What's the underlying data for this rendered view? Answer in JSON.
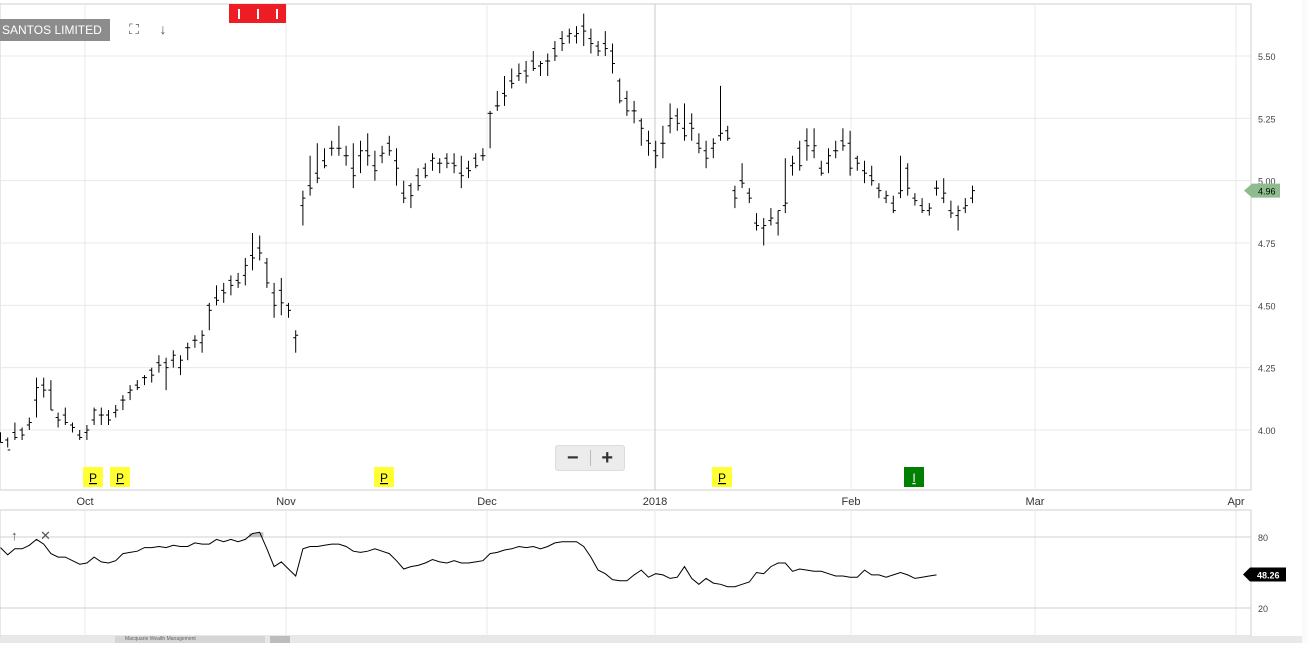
{
  "header": {
    "ticker": "SANTOS LIMITED"
  },
  "icons": {
    "fullscreen": "fullscreen-icon",
    "download": "download-arrow-icon",
    "scroll_up": "arrow-up-icon",
    "close": "close-icon"
  },
  "zoom": {
    "minus": "−",
    "plus": "+"
  },
  "colors": {
    "bar": "#000000",
    "grid": "#e8e8e8",
    "badge": "#8c8c8c",
    "price_tag": "#8fbc8f",
    "marker_yellow": "#ffff33",
    "marker_green": "#008000",
    "flag_red": "#ee1c24",
    "oscillator_tag": "#000000"
  },
  "bottom_tab_label": "Macquarie Wealth Management",
  "chart_data": [
    {
      "type": "bar",
      "title": "SANTOS LIMITED",
      "ylim": [
        3.79,
        5.7
      ],
      "yticks": [
        "4.00",
        "4.25",
        "4.50",
        "4.75",
        "5.00",
        "5.25",
        "5.50"
      ],
      "xticks": [
        "Oct",
        "Nov",
        "Dec",
        "2018",
        "Feb",
        "Mar",
        "Apr"
      ],
      "last_price": "4.96",
      "markers": [
        "P",
        "P",
        "P",
        "P",
        "I"
      ],
      "ohlc": [
        [
          3.99,
          3.95,
          3.99,
          3.95
        ],
        [
          3.96,
          3.93,
          3.97,
          3.92
        ],
        [
          3.99,
          3.96,
          4.03,
          3.97
        ],
        [
          4.0,
          3.96,
          4.01,
          3.98
        ],
        [
          4.02,
          4.0,
          4.05,
          4.03
        ],
        [
          4.12,
          4.05,
          4.21,
          4.17
        ],
        [
          4.18,
          4.13,
          4.21,
          4.16
        ],
        [
          4.16,
          4.08,
          4.2,
          4.08
        ],
        [
          4.05,
          4.01,
          4.07,
          4.04
        ],
        [
          4.06,
          4.02,
          4.09,
          4.03
        ],
        [
          4.02,
          3.99,
          4.03,
          4.01
        ],
        [
          3.98,
          3.96,
          4.0,
          3.97
        ],
        [
          3.99,
          3.96,
          4.02,
          4.0
        ],
        [
          4.04,
          4.02,
          4.09,
          4.08
        ],
        [
          4.06,
          4.02,
          4.09,
          4.06
        ],
        [
          4.06,
          4.02,
          4.08,
          4.04
        ],
        [
          4.07,
          4.05,
          4.1,
          4.08
        ],
        [
          4.12,
          4.08,
          4.14,
          4.12
        ],
        [
          4.15,
          4.12,
          4.18,
          4.16
        ],
        [
          4.18,
          4.16,
          4.2,
          4.17
        ],
        [
          4.21,
          4.18,
          4.22,
          4.21
        ],
        [
          4.24,
          4.19,
          4.25,
          4.22
        ],
        [
          4.27,
          4.23,
          4.3,
          4.26
        ],
        [
          4.27,
          4.16,
          4.29,
          4.25
        ],
        [
          4.28,
          4.25,
          4.32,
          4.3
        ],
        [
          4.25,
          4.22,
          4.3,
          4.28
        ],
        [
          4.33,
          4.28,
          4.35,
          4.33
        ],
        [
          4.36,
          4.33,
          4.38,
          4.36
        ],
        [
          4.35,
          4.31,
          4.4,
          4.38
        ],
        [
          4.5,
          4.4,
          4.51,
          4.48
        ],
        [
          4.53,
          4.5,
          4.58,
          4.52
        ],
        [
          4.56,
          4.51,
          4.59,
          4.55
        ],
        [
          4.6,
          4.54,
          4.62,
          4.58
        ],
        [
          4.6,
          4.57,
          4.63,
          4.59
        ],
        [
          4.62,
          4.58,
          4.69,
          4.66
        ],
        [
          4.7,
          4.64,
          4.79,
          4.69
        ],
        [
          4.73,
          4.68,
          4.78,
          4.71
        ],
        [
          4.67,
          4.57,
          4.69,
          4.59
        ],
        [
          4.55,
          4.45,
          4.59,
          4.5
        ],
        [
          4.56,
          4.46,
          4.61,
          4.51
        ],
        [
          4.5,
          4.45,
          4.51,
          4.48
        ],
        [
          4.37,
          4.31,
          4.4,
          4.38
        ],
        [
          4.9,
          4.82,
          4.96,
          4.93
        ],
        [
          4.98,
          4.94,
          5.1,
          4.97
        ],
        [
          5.03,
          4.99,
          5.15,
          5.01
        ],
        [
          5.08,
          5.05,
          5.13,
          5.06
        ],
        [
          5.13,
          5.1,
          5.16,
          5.13
        ],
        [
          5.13,
          5.1,
          5.22,
          5.13
        ],
        [
          5.1,
          5.06,
          5.14,
          5.1
        ],
        [
          5.05,
          4.97,
          5.15,
          5.02
        ],
        [
          5.1,
          5.03,
          5.16,
          5.12
        ],
        [
          5.12,
          5.06,
          5.19,
          5.1
        ],
        [
          5.06,
          5.0,
          5.12,
          5.04
        ],
        [
          5.1,
          5.07,
          5.14,
          5.11
        ],
        [
          5.15,
          5.1,
          5.18,
          5.12
        ],
        [
          5.08,
          4.98,
          5.13,
          5.05
        ],
        [
          4.95,
          4.91,
          5.0,
          4.93
        ],
        [
          4.98,
          4.89,
          4.99,
          4.94
        ],
        [
          5.02,
          4.96,
          5.05,
          4.98
        ],
        [
          5.05,
          5.01,
          5.07,
          5.02
        ],
        [
          5.08,
          5.04,
          5.11,
          5.09
        ],
        [
          5.07,
          5.03,
          5.09,
          5.07
        ],
        [
          5.09,
          5.05,
          5.11,
          5.07
        ],
        [
          5.07,
          5.03,
          5.11,
          5.06
        ],
        [
          5.03,
          4.97,
          5.1,
          5.02
        ],
        [
          5.05,
          5.01,
          5.08,
          5.04
        ],
        [
          5.09,
          5.05,
          5.11,
          5.06
        ],
        [
          5.1,
          5.08,
          5.13,
          5.1
        ],
        [
          5.27,
          5.13,
          5.28,
          5.27
        ],
        [
          5.3,
          5.28,
          5.36,
          5.3
        ],
        [
          5.35,
          5.3,
          5.42,
          5.34
        ],
        [
          5.4,
          5.37,
          5.45,
          5.39
        ],
        [
          5.42,
          5.4,
          5.47,
          5.43
        ],
        [
          5.44,
          5.39,
          5.48,
          5.42
        ],
        [
          5.48,
          5.44,
          5.52,
          5.45
        ],
        [
          5.46,
          5.42,
          5.48,
          5.47
        ],
        [
          5.48,
          5.42,
          5.51,
          5.48
        ],
        [
          5.53,
          5.48,
          5.56,
          5.5
        ],
        [
          5.57,
          5.52,
          5.6,
          5.55
        ],
        [
          5.58,
          5.55,
          5.61,
          5.59
        ],
        [
          5.58,
          5.55,
          5.62,
          5.59
        ],
        [
          5.62,
          5.54,
          5.67,
          5.6
        ],
        [
          5.57,
          5.51,
          5.61,
          5.55
        ],
        [
          5.54,
          5.5,
          5.56,
          5.52
        ],
        [
          5.55,
          5.5,
          5.6,
          5.53
        ],
        [
          5.52,
          5.43,
          5.55,
          5.47
        ],
        [
          5.4,
          5.31,
          5.41,
          5.32
        ],
        [
          5.33,
          5.26,
          5.36,
          5.28
        ],
        [
          5.28,
          5.23,
          5.32,
          5.28
        ],
        [
          5.24,
          5.14,
          5.25,
          5.21
        ],
        [
          5.16,
          5.1,
          5.2,
          5.15
        ],
        [
          5.12,
          5.05,
          5.16,
          5.1
        ],
        [
          5.15,
          5.09,
          5.22,
          5.15
        ],
        [
          5.22,
          5.19,
          5.31,
          5.25
        ],
        [
          5.26,
          5.2,
          5.29,
          5.23
        ],
        [
          5.21,
          5.16,
          5.31,
          5.18
        ],
        [
          5.23,
          5.16,
          5.27,
          5.21
        ],
        [
          5.15,
          5.11,
          5.19,
          5.13
        ],
        [
          5.12,
          5.05,
          5.16,
          5.09
        ],
        [
          5.13,
          5.09,
          5.17,
          5.15
        ],
        [
          5.18,
          5.16,
          5.38,
          5.19
        ],
        [
          5.2,
          5.16,
          5.22,
          5.17
        ],
        [
          4.96,
          4.89,
          4.98,
          4.93
        ],
        [
          5.0,
          4.97,
          5.07,
          4.99
        ],
        [
          4.95,
          4.91,
          4.97,
          4.93
        ],
        [
          4.83,
          4.8,
          4.87,
          4.82
        ],
        [
          4.81,
          4.74,
          4.85,
          4.82
        ],
        [
          4.84,
          4.82,
          4.89,
          4.85
        ],
        [
          4.83,
          4.78,
          4.88,
          4.88
        ],
        [
          4.9,
          4.87,
          5.09,
          4.91
        ],
        [
          5.06,
          5.02,
          5.1,
          5.07
        ],
        [
          5.13,
          5.04,
          5.16,
          5.06
        ],
        [
          5.16,
          5.08,
          5.21,
          5.14
        ],
        [
          5.12,
          5.09,
          5.21,
          5.14
        ],
        [
          5.05,
          5.02,
          5.08,
          5.03
        ],
        [
          5.07,
          5.03,
          5.13,
          5.1
        ],
        [
          5.12,
          5.09,
          5.16,
          5.12
        ],
        [
          5.16,
          5.12,
          5.21,
          5.14
        ],
        [
          5.15,
          5.02,
          5.2,
          5.05
        ],
        [
          5.09,
          5.04,
          5.1,
          5.07
        ],
        [
          5.04,
          4.99,
          5.08,
          5.03
        ],
        [
          5.02,
          4.98,
          5.06,
          5.0
        ],
        [
          4.97,
          4.93,
          4.99,
          4.96
        ],
        [
          4.93,
          4.91,
          4.96,
          4.94
        ],
        [
          4.91,
          4.87,
          4.94,
          4.88
        ],
        [
          4.95,
          4.93,
          5.1,
          4.96
        ],
        [
          5.05,
          4.94,
          5.07,
          4.97
        ],
        [
          4.93,
          4.9,
          4.95,
          4.92
        ],
        [
          4.9,
          4.87,
          4.93,
          4.88
        ],
        [
          4.88,
          4.86,
          4.91,
          4.89
        ],
        [
          4.97,
          4.94,
          5.0,
          4.97
        ],
        [
          4.93,
          4.91,
          5.01,
          4.95
        ],
        [
          4.88,
          4.85,
          4.92,
          4.87
        ],
        [
          4.86,
          4.8,
          4.9,
          4.88
        ],
        [
          4.89,
          4.87,
          4.93,
          4.9
        ],
        [
          4.93,
          4.91,
          4.98,
          4.96
        ]
      ]
    },
    {
      "type": "line",
      "title": "",
      "ylim": [
        12,
        92
      ],
      "yticks": [
        "80",
        "20"
      ],
      "last_value": "48.26",
      "values": [
        71,
        65,
        70,
        70,
        73,
        78,
        74,
        66,
        63,
        63,
        60,
        57,
        58,
        63,
        59,
        58,
        60,
        66,
        67,
        68,
        71,
        71,
        72,
        71,
        73,
        72,
        72,
        75,
        74,
        74,
        78,
        76,
        78,
        76,
        78,
        83,
        84,
        70,
        55,
        59,
        53,
        47,
        70,
        72,
        72,
        73,
        74,
        74,
        72,
        68,
        67,
        68,
        70,
        68,
        66,
        60,
        53,
        55,
        56,
        58,
        61,
        59,
        58,
        60,
        58,
        58,
        59,
        60,
        66,
        67,
        69,
        70,
        72,
        71,
        72,
        70,
        72,
        75,
        76,
        76,
        76,
        72,
        63,
        52,
        49,
        44,
        43,
        43,
        48,
        52,
        46,
        49,
        48,
        45,
        46,
        55,
        45,
        40,
        45,
        41,
        40,
        38,
        38,
        40,
        42,
        50,
        49,
        55,
        58,
        58,
        51,
        53,
        52,
        51,
        51,
        49,
        47,
        47,
        46,
        46,
        52,
        48,
        48,
        46,
        48,
        50,
        48,
        45,
        46,
        47,
        48
      ]
    }
  ]
}
